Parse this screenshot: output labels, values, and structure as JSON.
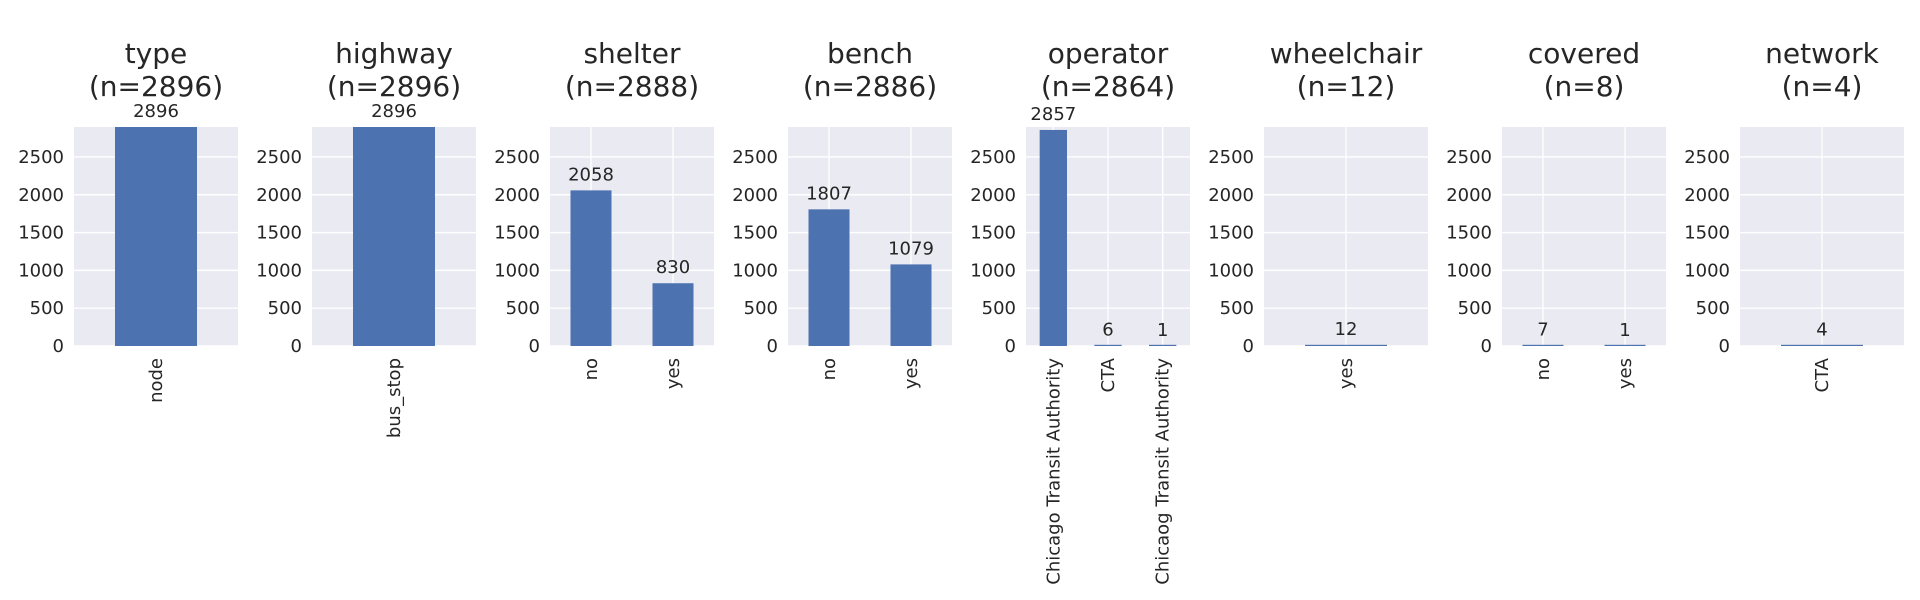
{
  "chart_data": [
    {
      "type": "bar",
      "title_line1": "type",
      "title_line2": "(n=2896)",
      "categories": [
        "node"
      ],
      "values": [
        2896
      ],
      "ylim": [
        0,
        2896
      ],
      "yticks": [
        0,
        500,
        1000,
        1500,
        2000,
        2500
      ],
      "grid": true
    },
    {
      "type": "bar",
      "title_line1": "highway",
      "title_line2": "(n=2896)",
      "categories": [
        "bus_stop"
      ],
      "values": [
        2896
      ],
      "ylim": [
        0,
        2896
      ],
      "yticks": [
        0,
        500,
        1000,
        1500,
        2000,
        2500
      ],
      "grid": true
    },
    {
      "type": "bar",
      "title_line1": "shelter",
      "title_line2": "(n=2888)",
      "categories": [
        "no",
        "yes"
      ],
      "values": [
        2058,
        830
      ],
      "ylim": [
        0,
        2896
      ],
      "yticks": [
        0,
        500,
        1000,
        1500,
        2000,
        2500
      ],
      "grid": true
    },
    {
      "type": "bar",
      "title_line1": "bench",
      "title_line2": "(n=2886)",
      "categories": [
        "no",
        "yes"
      ],
      "values": [
        1807,
        1079
      ],
      "ylim": [
        0,
        2896
      ],
      "yticks": [
        0,
        500,
        1000,
        1500,
        2000,
        2500
      ],
      "grid": true
    },
    {
      "type": "bar",
      "title_line1": "operator",
      "title_line2": "(n=2864)",
      "categories": [
        "Chicago Transit Authority",
        "CTA",
        "Chicaog Transit Authority"
      ],
      "values": [
        2857,
        6,
        1
      ],
      "ylim": [
        0,
        2896
      ],
      "yticks": [
        0,
        500,
        1000,
        1500,
        2000,
        2500
      ],
      "grid": true
    },
    {
      "type": "bar",
      "title_line1": "wheelchair",
      "title_line2": "(n=12)",
      "categories": [
        "yes"
      ],
      "values": [
        12
      ],
      "ylim": [
        0,
        2896
      ],
      "yticks": [
        0,
        500,
        1000,
        1500,
        2000,
        2500
      ],
      "grid": true
    },
    {
      "type": "bar",
      "title_line1": "covered",
      "title_line2": "(n=8)",
      "categories": [
        "no",
        "yes"
      ],
      "values": [
        7,
        1
      ],
      "ylim": [
        0,
        2896
      ],
      "yticks": [
        0,
        500,
        1000,
        1500,
        2000,
        2500
      ],
      "grid": true
    },
    {
      "type": "bar",
      "title_line1": "network",
      "title_line2": "(n=4)",
      "categories": [
        "CTA"
      ],
      "values": [
        4
      ],
      "ylim": [
        0,
        2896
      ],
      "yticks": [
        0,
        500,
        1000,
        1500,
        2000,
        2500
      ],
      "grid": true
    }
  ],
  "colors": {
    "bar": "#4C72B0",
    "plot_background": "#EAEAF2",
    "grid": "#FFFFFF",
    "text": "#262626"
  }
}
